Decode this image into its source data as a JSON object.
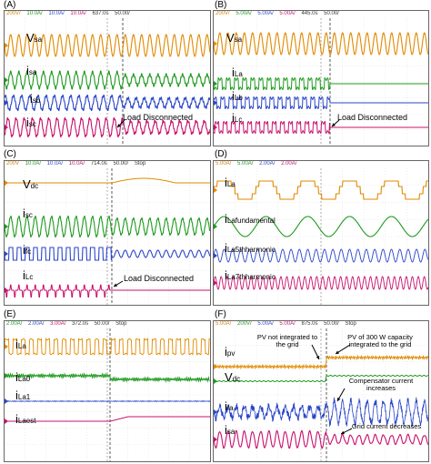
{
  "panels": {
    "A": {
      "label": "(A)",
      "header": [
        "200V/",
        "10.0A/",
        "10.0A/",
        "10.0A/",
        "637.0s",
        "50.00/"
      ],
      "signals": [
        {
          "main": "V",
          "sub": "sa",
          "color": "#e08a00"
        },
        {
          "main": "i",
          "sub": "sa",
          "color": "#1e9a1e"
        },
        {
          "main": "i",
          "sub": "sb",
          "color": "#2a46c8"
        },
        {
          "main": "i",
          "sub": "sc",
          "color": "#c8106c"
        }
      ],
      "annotation": "Load Disconnected"
    },
    "B": {
      "label": "(B)",
      "header": [
        "200V/",
        "5.00A/",
        "5.00A/",
        "5.00A/",
        "445.0s",
        "50.00/"
      ],
      "signals": [
        {
          "main": "V",
          "sub": "sa",
          "color": "#e08a00"
        },
        {
          "main": "i",
          "sub": "La",
          "color": "#1e9a1e"
        },
        {
          "main": "i",
          "sub": "Lb",
          "color": "#2a46c8"
        },
        {
          "main": "i",
          "sub": "Lc",
          "color": "#c8106c"
        }
      ],
      "annotation": "Load Disconnected"
    },
    "C": {
      "label": "(C)",
      "header": [
        "200V",
        "10.0A/",
        "10.0A/",
        "10.0A/",
        "714.0s",
        "50.00/",
        "Stop"
      ],
      "signals": [
        {
          "main": "V",
          "sub": "dc",
          "color": "#e08a00"
        },
        {
          "main": "i",
          "sub": "sc",
          "color": "#1e9a1e"
        },
        {
          "main": "i",
          "sub": "fc",
          "color": "#2a46c8"
        },
        {
          "main": "i",
          "sub": "Lc",
          "color": "#c8106c"
        }
      ],
      "annotation": "Load Disconnected"
    },
    "D": {
      "label": "(D)",
      "header": [
        "5.00A/",
        "5.00A/",
        "2.00A/",
        "2.00A/"
      ],
      "signals": [
        {
          "main": "i",
          "sub": "La",
          "color": "#e08a00"
        },
        {
          "main": "i",
          "sub": "Lafundamental",
          "color": "#1e9a1e"
        },
        {
          "main": "i",
          "sub": "La5thharmonic",
          "color": "#2a46c8"
        },
        {
          "main": "i",
          "sub": "La7thharmonic",
          "color": "#c8106c"
        }
      ]
    },
    "E": {
      "label": "(E)",
      "header": [
        "2.00A/",
        "2.00A/",
        "3.00A/",
        "372.0s",
        "50.00/",
        "Stop"
      ],
      "signals": [
        {
          "main": "i",
          "sub": "La",
          "color": "#e08a00"
        },
        {
          "main": "i",
          "sub": "La0",
          "color": "#1e9a1e"
        },
        {
          "main": "i",
          "sub": "La1",
          "color": "#2a46c8"
        },
        {
          "main": "i",
          "sub": "Laest",
          "color": "#c8106c"
        }
      ]
    },
    "F": {
      "label": "(F)",
      "header": [
        "5.00A/",
        "200V/",
        "5.00A/",
        "5.00A/",
        "875.0s",
        "50.00/",
        "Stop"
      ],
      "signals": [
        {
          "main": "i",
          "sub": "pv",
          "color": "#e08a00"
        },
        {
          "main": "V",
          "sub": "dc",
          "color": "#1e9a1e"
        },
        {
          "main": "i",
          "sub": "fa",
          "color": "#2a46c8"
        },
        {
          "main": "i",
          "sub": "sa",
          "color": "#c8106c"
        }
      ],
      "notes": {
        "pv_not": "PV not integrated to the grid",
        "pv_yes": "PV of 300 W capacity integrated to the grid",
        "comp": "Compensator current increases",
        "grid": "Grid current decreases"
      }
    }
  },
  "colors": {
    "ch1": "#e08a00",
    "ch2": "#1e9a1e",
    "ch3": "#2a46c8",
    "ch4": "#c8106c"
  }
}
